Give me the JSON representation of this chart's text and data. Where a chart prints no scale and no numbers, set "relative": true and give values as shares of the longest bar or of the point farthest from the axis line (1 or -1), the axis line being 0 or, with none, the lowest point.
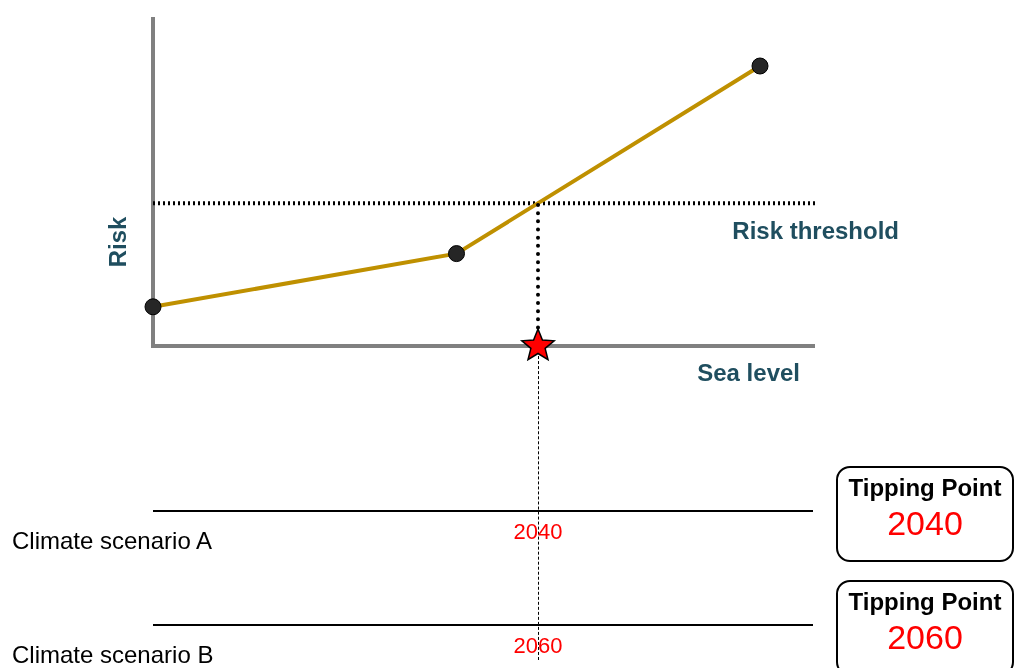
{
  "chart_data": {
    "type": "line",
    "relative": true,
    "xlabel": "Sea level",
    "ylabel": "Risk",
    "legend": false,
    "marker": "circle",
    "color": "#bf9000",
    "categories": [
      null,
      null,
      null
    ],
    "values": [
      0.14,
      0.33,
      1
    ],
    "ref_lines": [
      {
        "axis": "y",
        "value": 0.51,
        "label": "Risk threshold",
        "color": "#000000",
        "line_style": "dotted"
      }
    ],
    "annotations": [
      "Climate scenario A",
      "2040",
      "Tipping Point",
      "2040",
      "Climate scenario B",
      "2060",
      "Tipping Point",
      "2060"
    ]
  }
}
